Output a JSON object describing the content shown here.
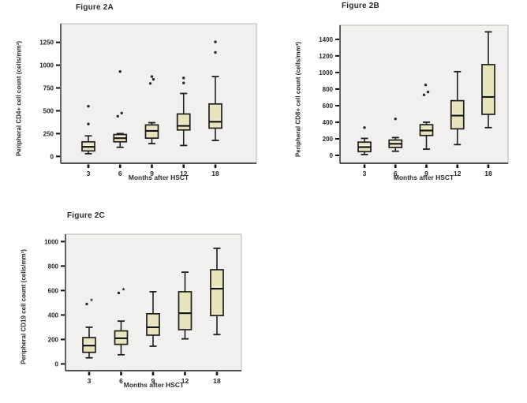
{
  "colors": {
    "box_fill": "#e8e3bb",
    "box_stroke": "#1f1f1f",
    "median": "#161616",
    "median_highlight": "#f7f4e2",
    "panel_bg": "#f1f0ee",
    "panel_border": "#b8b6b2",
    "axis": "#3c3c3c",
    "tick": "#111111",
    "outlier": "#2a2a2a",
    "text": "#262626"
  },
  "chart_data": [
    {
      "type": "boxplot",
      "id": "2A",
      "title": "Figure 2A",
      "ylabel": "Peripheral CD4+ cell count (cells/mm³)",
      "xlabel": "Months after HSCT",
      "categories": [
        "3",
        "6",
        "9",
        "12",
        "18"
      ],
      "yticks": [
        0,
        250,
        500,
        750,
        1000,
        1250
      ],
      "ylim": [
        -75,
        1455
      ],
      "grid": false,
      "boxes": [
        {
          "whisker_low": 30,
          "q1": 60,
          "median": 105,
          "q3": 160,
          "whisker_high": 225,
          "outliers": [
            {
              "v": 355
            },
            {
              "v": 550
            }
          ]
        },
        {
          "whisker_low": 100,
          "q1": 160,
          "median": 200,
          "q3": 240,
          "whisker_high": 250,
          "outliers": [
            {
              "v": 440,
              "dx": -3
            },
            {
              "v": 475,
              "dx": 2
            },
            {
              "v": 930
            }
          ]
        },
        {
          "whisker_low": 140,
          "q1": 200,
          "median": 280,
          "q3": 345,
          "whisker_high": 370,
          "outliers": [
            {
              "v": 800,
              "dx": -2
            },
            {
              "v": 845,
              "dx": 2
            },
            {
              "v": 875
            }
          ]
        },
        {
          "whisker_low": 120,
          "q1": 290,
          "median": 335,
          "q3": 465,
          "whisker_high": 690,
          "outliers": [
            {
              "v": 805
            },
            {
              "v": 860
            }
          ]
        },
        {
          "whisker_low": 175,
          "q1": 310,
          "median": 380,
          "q3": 575,
          "whisker_high": 875,
          "outliers": [
            {
              "v": 1140
            },
            {
              "v": 1255
            }
          ]
        }
      ]
    },
    {
      "type": "boxplot",
      "id": "2B",
      "title": "Figure 2B",
      "ylabel": "Peripheral CD8+ cell count (cells/mm³)",
      "xlabel": "Months after HSCT",
      "categories": [
        "3",
        "6",
        "9",
        "12",
        "18"
      ],
      "yticks": [
        0,
        200,
        400,
        600,
        800,
        1000,
        1200,
        1400
      ],
      "ylim": [
        -95,
        1570
      ],
      "grid": false,
      "boxes": [
        {
          "whisker_low": 10,
          "q1": 45,
          "median": 100,
          "q3": 160,
          "whisker_high": 205,
          "outliers": [
            {
              "v": 335
            }
          ]
        },
        {
          "whisker_low": 50,
          "q1": 95,
          "median": 140,
          "q3": 185,
          "whisker_high": 215,
          "outliers": [
            {
              "v": 440
            }
          ]
        },
        {
          "whisker_low": 75,
          "q1": 240,
          "median": 300,
          "q3": 370,
          "whisker_high": 400,
          "outliers": [
            {
              "v": 730,
              "dx": -3
            },
            {
              "v": 765,
              "dx": 2
            },
            {
              "v": 850,
              "dx": -1
            }
          ]
        },
        {
          "whisker_low": 130,
          "q1": 320,
          "median": 480,
          "q3": 660,
          "whisker_high": 1010,
          "outliers": []
        },
        {
          "whisker_low": 335,
          "q1": 495,
          "median": 705,
          "q3": 1095,
          "whisker_high": 1490,
          "outliers": []
        }
      ]
    },
    {
      "type": "boxplot",
      "id": "2C",
      "title": "Figure 2C",
      "ylabel": "Peripheral CD19 cell count (cells/mm³)",
      "xlabel": "Months after HSCT",
      "categories": [
        "3",
        "6",
        "9",
        "12",
        "18"
      ],
      "yticks": [
        0,
        200,
        400,
        600,
        800,
        1000
      ],
      "ylim": [
        -55,
        1060
      ],
      "grid": false,
      "boxes": [
        {
          "whisker_low": 50,
          "q1": 95,
          "median": 150,
          "q3": 215,
          "whisker_high": 300,
          "outliers": [
            {
              "v": 490,
              "dx": -3
            },
            {
              "v": 515,
              "dx": 3,
              "marker": "star"
            }
          ]
        },
        {
          "whisker_low": 75,
          "q1": 160,
          "median": 210,
          "q3": 270,
          "whisker_high": 350,
          "outliers": [
            {
              "v": 580,
              "dx": -3
            },
            {
              "v": 600,
              "dx": 3,
              "marker": "star"
            }
          ]
        },
        {
          "whisker_low": 145,
          "q1": 235,
          "median": 300,
          "q3": 410,
          "whisker_high": 590,
          "outliers": []
        },
        {
          "whisker_low": 205,
          "q1": 280,
          "median": 415,
          "q3": 590,
          "whisker_high": 750,
          "outliers": []
        },
        {
          "whisker_low": 240,
          "q1": 395,
          "median": 615,
          "q3": 770,
          "whisker_high": 945,
          "outliers": []
        }
      ]
    }
  ]
}
